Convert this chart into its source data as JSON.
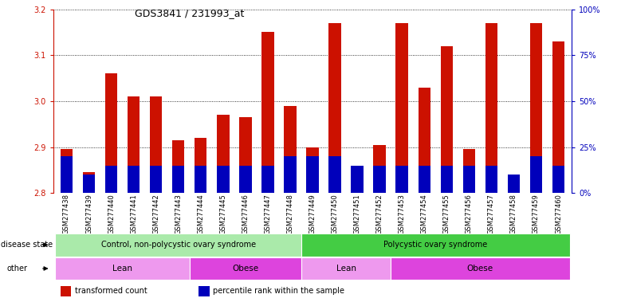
{
  "title": "GDS3841 / 231993_at",
  "samples": [
    "GSM277438",
    "GSM277439",
    "GSM277440",
    "GSM277441",
    "GSM277442",
    "GSM277443",
    "GSM277444",
    "GSM277445",
    "GSM277446",
    "GSM277447",
    "GSM277448",
    "GSM277449",
    "GSM277450",
    "GSM277451",
    "GSM277452",
    "GSM277453",
    "GSM277454",
    "GSM277455",
    "GSM277456",
    "GSM277457",
    "GSM277458",
    "GSM277459",
    "GSM277460"
  ],
  "transformed_count": [
    2.895,
    2.845,
    3.06,
    3.01,
    3.01,
    2.915,
    2.92,
    2.97,
    2.965,
    3.15,
    2.99,
    2.9,
    3.17,
    2.825,
    2.905,
    3.17,
    3.03,
    3.12,
    2.895,
    3.17,
    2.82,
    3.17,
    3.13
  ],
  "percentile_rank": [
    20,
    10,
    15,
    15,
    15,
    15,
    15,
    15,
    15,
    15,
    20,
    20,
    20,
    15,
    15,
    15,
    15,
    15,
    15,
    15,
    10,
    20,
    15
  ],
  "bar_bottom": 2.8,
  "ylim_left": [
    2.8,
    3.2
  ],
  "yticks_left": [
    2.8,
    2.9,
    3.0,
    3.1,
    3.2
  ],
  "ylim_right": [
    0,
    100
  ],
  "yticks_right": [
    0,
    25,
    50,
    75,
    100
  ],
  "yticklabels_right": [
    "0%",
    "25%",
    "50%",
    "75%",
    "100%"
  ],
  "bar_color_red": "#cc1100",
  "bar_color_blue": "#0000bb",
  "disease_state_groups": [
    {
      "label": "Control, non-polycystic ovary syndrome",
      "start": 0,
      "end": 11,
      "color": "#aaeaaa"
    },
    {
      "label": "Polycystic ovary syndrome",
      "start": 11,
      "end": 23,
      "color": "#44cc44"
    }
  ],
  "other_groups": [
    {
      "label": "Lean",
      "start": 0,
      "end": 6,
      "color": "#ee99ee"
    },
    {
      "label": "Obese",
      "start": 6,
      "end": 11,
      "color": "#dd44dd"
    },
    {
      "label": "Lean",
      "start": 11,
      "end": 15,
      "color": "#ee99ee"
    },
    {
      "label": "Obese",
      "start": 15,
      "end": 23,
      "color": "#dd44dd"
    }
  ],
  "disease_state_label": "disease state",
  "other_label": "other",
  "legend_items": [
    {
      "label": "transformed count",
      "color": "#cc1100"
    },
    {
      "label": "percentile rank within the sample",
      "color": "#0000bb"
    }
  ],
  "grid_color": "#000000",
  "xtick_bg_color": "#d8d8d8"
}
